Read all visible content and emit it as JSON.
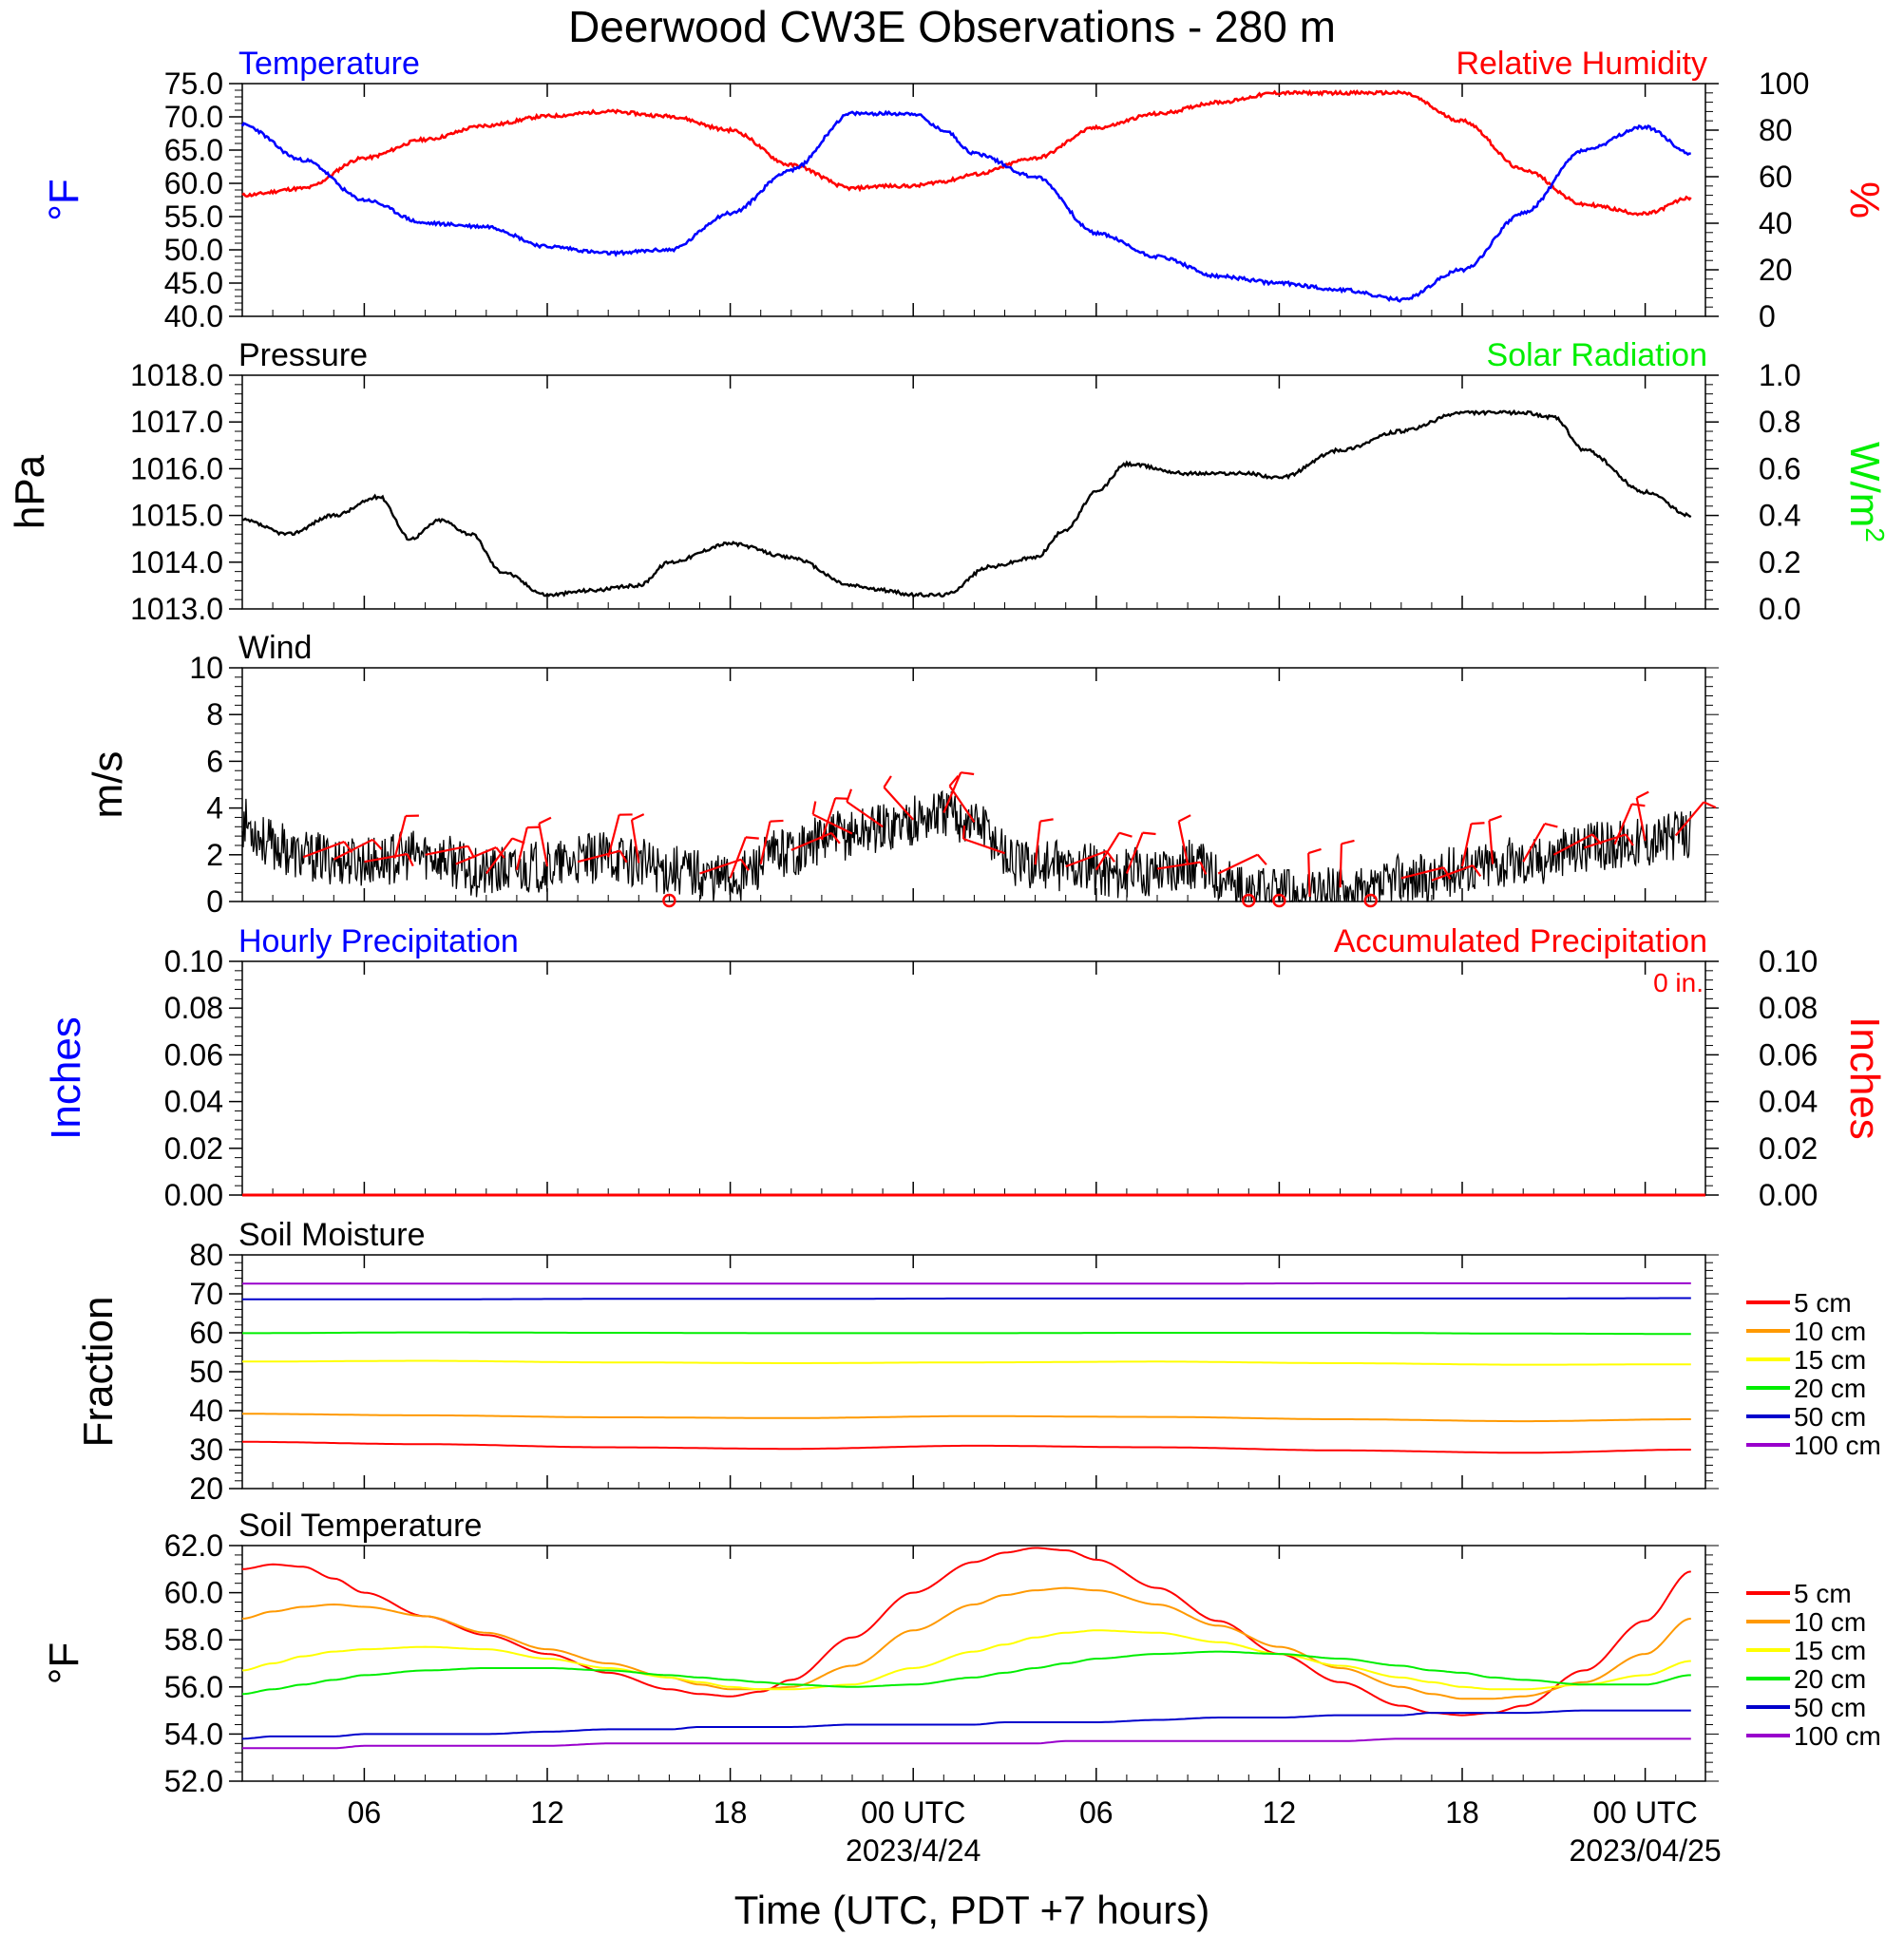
{
  "title": "Deerwood CW3E Observations - 280 m",
  "x_axis": {
    "label": "Time (UTC, PDT +7 hours)",
    "ticks": [
      "06",
      "12",
      "18",
      "00 UTC",
      "06",
      "12",
      "18",
      "00 UTC"
    ],
    "dates": [
      "2023/4/24",
      "2023/04/25"
    ]
  },
  "colors": {
    "temperature": "#0000ff",
    "humidity": "#ff0000",
    "pressure": "#000000",
    "solar": "#00ee00",
    "wind_speed": "#000000",
    "wind_barb": "#ff0000",
    "accum": "#ff0000",
    "hourly": "#0000ff",
    "depths": [
      "#ff0000",
      "#ff9900",
      "#ffff00",
      "#00ee00",
      "#0000cc",
      "#9900cc"
    ]
  },
  "chart_data": [
    {
      "id": "temp_rh",
      "type": "line",
      "left_title": "Temperature",
      "right_title": "Relative Humidity",
      "left_unit": "°F",
      "right_unit": "%",
      "left_ticks": [
        "75.0",
        "70.0",
        "65.0",
        "60.0",
        "55.0",
        "50.0",
        "45.0",
        "40.0"
      ],
      "right_ticks": [
        "100",
        "80",
        "60",
        "40",
        "20",
        "0"
      ],
      "ylim_left": [
        40,
        75
      ],
      "ylim_right": [
        0,
        100
      ],
      "x_hours": [
        0,
        2,
        4,
        6,
        8,
        10,
        12,
        14,
        16,
        18,
        20,
        21,
        22,
        23,
        24,
        26,
        28,
        30,
        32,
        34,
        36,
        38,
        40,
        42,
        44,
        46,
        47.5
      ],
      "series": [
        {
          "name": "Temperature",
          "axis": "left",
          "values": [
            68.8,
            63.5,
            57.5,
            54.0,
            53.5,
            50.5,
            49.5,
            50.0,
            55.5,
            62.0,
            70.5,
            70.5,
            70.5,
            68.0,
            64.5,
            61.0,
            52.5,
            49.0,
            46.0,
            45.0,
            44.0,
            42.5,
            47.0,
            55.5,
            65.0,
            68.5,
            64.5
          ]
        },
        {
          "name": "Relative Humidity",
          "axis": "right",
          "values": [
            52,
            55,
            68,
            76,
            82,
            86,
            88,
            86,
            80,
            65,
            55,
            56,
            56,
            58,
            61,
            68,
            81,
            87,
            92,
            96,
            96,
            96,
            84,
            63,
            48,
            44,
            51
          ]
        }
      ]
    },
    {
      "id": "pressure",
      "type": "line",
      "left_title": "Pressure",
      "right_title": "Solar Radiation",
      "left_unit": "hPa",
      "right_unit": "W/m",
      "right_unit_sup": "2",
      "left_ticks": [
        "1018.0",
        "1017.0",
        "1016.0",
        "1015.0",
        "1014.0",
        "1013.0"
      ],
      "right_ticks": [
        "1.0",
        "0.8",
        "0.6",
        "0.4",
        "0.2",
        "0.0"
      ],
      "ylim_left": [
        1013,
        1018
      ],
      "ylim_right": [
        0,
        1
      ],
      "x_hours": [
        0,
        1.5,
        3,
        4.5,
        5.5,
        6.5,
        7.5,
        8.5,
        10,
        11.5,
        13,
        14,
        16,
        18,
        20,
        21,
        22,
        23,
        24.5,
        26,
        27,
        28,
        29,
        31,
        33,
        34,
        36,
        38,
        40,
        42,
        43,
        44,
        46,
        47.5
      ],
      "series": [
        {
          "name": "Pressure",
          "axis": "left",
          "values": [
            1014.9,
            1014.6,
            1015.0,
            1015.4,
            1014.5,
            1014.9,
            1014.6,
            1013.8,
            1013.3,
            1013.4,
            1013.5,
            1014.0,
            1014.4,
            1014.1,
            1013.5,
            1013.4,
            1013.3,
            1013.3,
            1013.9,
            1014.1,
            1014.7,
            1015.5,
            1016.1,
            1015.9,
            1015.9,
            1015.8,
            1016.4,
            1016.8,
            1017.2,
            1017.2,
            1017.1,
            1016.4,
            1015.5,
            1015.0
          ]
        }
      ]
    },
    {
      "id": "wind",
      "type": "line",
      "left_title": "Wind",
      "left_unit": "m/s",
      "left_ticks": [
        "10",
        "8",
        "6",
        "4",
        "2",
        "0"
      ],
      "ylim_left": [
        0,
        10
      ],
      "x_hours": [
        0,
        1,
        2,
        4,
        6,
        8,
        10,
        12,
        14,
        16,
        18,
        19.5,
        21,
        22,
        23,
        24,
        25.5,
        27,
        29,
        31,
        32,
        33,
        34,
        35,
        36,
        37,
        38,
        39,
        40,
        42,
        44,
        46,
        47.5
      ],
      "series": [
        {
          "name": "Wind",
          "axis": "left",
          "values": [
            3.4,
            2.4,
            1.9,
            1.7,
            2.0,
            1.2,
            1.5,
            1.9,
            1.4,
            1.0,
            2.2,
            2.8,
            3.2,
            3.5,
            3.8,
            3.4,
            1.6,
            1.5,
            1.2,
            1.6,
            1.2,
            0.3,
            0.4,
            0.2,
            0.6,
            0.3,
            1.0,
            0.9,
            1.5,
            1.7,
            2.3,
            2.6,
            2.9
          ]
        }
      ],
      "calm_hours": [
        14,
        33,
        34,
        37
      ],
      "barb_every_hours": 1
    },
    {
      "id": "precip",
      "type": "line",
      "left_title": "Hourly Precipitation",
      "right_title": "Accumulated Precipitation",
      "accum_text": "0 in.",
      "left_unit": "Inches",
      "right_unit": "Inches",
      "left_ticks": [
        "0.10",
        "0.08",
        "0.06",
        "0.04",
        "0.02",
        "0.00"
      ],
      "right_ticks": [
        "0.10",
        "0.08",
        "0.06",
        "0.04",
        "0.02",
        "0.00"
      ],
      "ylim_left": [
        0,
        0.1
      ],
      "ylim_right": [
        0,
        0.1
      ],
      "x_hours": [
        0,
        47.5
      ],
      "series": [
        {
          "name": "Accumulated Precipitation",
          "axis": "right",
          "values": [
            0,
            0
          ]
        }
      ]
    },
    {
      "id": "soil_moisture",
      "type": "line",
      "left_title": "Soil Moisture",
      "left_unit": "Fraction",
      "left_ticks": [
        "80",
        "70",
        "60",
        "50",
        "40",
        "30",
        "20"
      ],
      "ylim_left": [
        20,
        80
      ],
      "legend": [
        "5 cm",
        "10 cm",
        "15 cm",
        "20 cm",
        "50 cm",
        "100 cm"
      ],
      "x_hours": [
        0,
        6,
        12,
        18,
        24,
        30,
        36,
        42,
        47.5
      ],
      "series": [
        {
          "name": "5 cm",
          "axis": "left",
          "values": [
            32.0,
            31.4,
            30.6,
            30.2,
            31.0,
            30.6,
            29.8,
            29.2,
            30.0
          ]
        },
        {
          "name": "10 cm",
          "axis": "left",
          "values": [
            39.2,
            38.8,
            38.3,
            38.1,
            38.6,
            38.4,
            37.8,
            37.3,
            37.8
          ]
        },
        {
          "name": "15 cm",
          "axis": "left",
          "values": [
            52.6,
            52.8,
            52.4,
            52.2,
            52.4,
            52.6,
            52.2,
            51.8,
            51.9
          ]
        },
        {
          "name": "20 cm",
          "axis": "left",
          "values": [
            59.9,
            60.1,
            60.0,
            59.9,
            59.9,
            60.0,
            60.0,
            59.8,
            59.7
          ]
        },
        {
          "name": "50 cm",
          "axis": "left",
          "values": [
            68.6,
            68.6,
            68.7,
            68.7,
            68.8,
            68.8,
            68.8,
            68.8,
            68.9
          ]
        },
        {
          "name": "100 cm",
          "axis": "left",
          "values": [
            72.6,
            72.6,
            72.6,
            72.6,
            72.6,
            72.6,
            72.7,
            72.7,
            72.7
          ]
        }
      ]
    },
    {
      "id": "soil_temperature",
      "type": "line",
      "left_title": "Soil Temperature",
      "left_unit": "°F",
      "left_ticks": [
        "62.0",
        "60.0",
        "58.0",
        "56.0",
        "54.0",
        "52.0"
      ],
      "ylim_left": [
        52,
        62
      ],
      "legend": [
        "5 cm",
        "10 cm",
        "15 cm",
        "20 cm",
        "50 cm",
        "100 cm"
      ],
      "x_hours": [
        0,
        1,
        2,
        3,
        4,
        6,
        8,
        10,
        12,
        14,
        15,
        16,
        17,
        18,
        20,
        22,
        24,
        25,
        26,
        27,
        28,
        30,
        32,
        34,
        36,
        38,
        39,
        40,
        41,
        42,
        44,
        46,
        47.5
      ],
      "series": [
        {
          "name": "5 cm",
          "axis": "left",
          "values": [
            61.0,
            61.2,
            61.1,
            60.6,
            60.0,
            59.0,
            58.2,
            57.4,
            56.6,
            55.9,
            55.7,
            55.6,
            55.8,
            56.3,
            58.1,
            60.0,
            61.3,
            61.7,
            61.9,
            61.8,
            61.4,
            60.2,
            58.8,
            57.4,
            56.2,
            55.2,
            54.9,
            54.8,
            54.9,
            55.2,
            56.7,
            58.8,
            60.9
          ]
        },
        {
          "name": "10 cm",
          "axis": "left",
          "values": [
            58.9,
            59.2,
            59.4,
            59.5,
            59.4,
            59.0,
            58.3,
            57.6,
            57.0,
            56.4,
            56.1,
            55.9,
            55.9,
            56.0,
            56.9,
            58.4,
            59.5,
            59.9,
            60.1,
            60.2,
            60.1,
            59.5,
            58.6,
            57.7,
            56.8,
            56.0,
            55.7,
            55.5,
            55.5,
            55.6,
            56.2,
            57.4,
            58.9
          ]
        },
        {
          "name": "15 cm",
          "axis": "left",
          "values": [
            56.7,
            57.0,
            57.3,
            57.5,
            57.6,
            57.7,
            57.6,
            57.2,
            56.8,
            56.4,
            56.2,
            56.0,
            55.9,
            55.9,
            56.1,
            56.8,
            57.5,
            57.8,
            58.1,
            58.3,
            58.4,
            58.3,
            57.9,
            57.4,
            56.9,
            56.4,
            56.2,
            56.0,
            55.9,
            55.9,
            56.1,
            56.5,
            57.1
          ]
        },
        {
          "name": "20 cm",
          "axis": "left",
          "values": [
            55.7,
            55.9,
            56.1,
            56.3,
            56.5,
            56.7,
            56.8,
            56.8,
            56.7,
            56.5,
            56.4,
            56.3,
            56.2,
            56.1,
            56.0,
            56.1,
            56.4,
            56.6,
            56.8,
            57.0,
            57.2,
            57.4,
            57.5,
            57.4,
            57.2,
            56.9,
            56.7,
            56.6,
            56.4,
            56.3,
            56.1,
            56.1,
            56.5
          ]
        },
        {
          "name": "50 cm",
          "axis": "left",
          "values": [
            53.8,
            53.9,
            53.9,
            53.9,
            54.0,
            54.0,
            54.0,
            54.1,
            54.2,
            54.2,
            54.3,
            54.3,
            54.3,
            54.3,
            54.4,
            54.4,
            54.4,
            54.5,
            54.5,
            54.5,
            54.5,
            54.6,
            54.7,
            54.7,
            54.8,
            54.8,
            54.9,
            54.9,
            54.9,
            54.9,
            55.0,
            55.0,
            55.0
          ]
        },
        {
          "name": "100 cm",
          "axis": "left",
          "values": [
            53.4,
            53.4,
            53.4,
            53.4,
            53.5,
            53.5,
            53.5,
            53.5,
            53.6,
            53.6,
            53.6,
            53.6,
            53.6,
            53.6,
            53.6,
            53.6,
            53.6,
            53.6,
            53.6,
            53.7,
            53.7,
            53.7,
            53.7,
            53.7,
            53.7,
            53.8,
            53.8,
            53.8,
            53.8,
            53.8,
            53.8,
            53.8,
            53.8
          ]
        }
      ]
    }
  ]
}
